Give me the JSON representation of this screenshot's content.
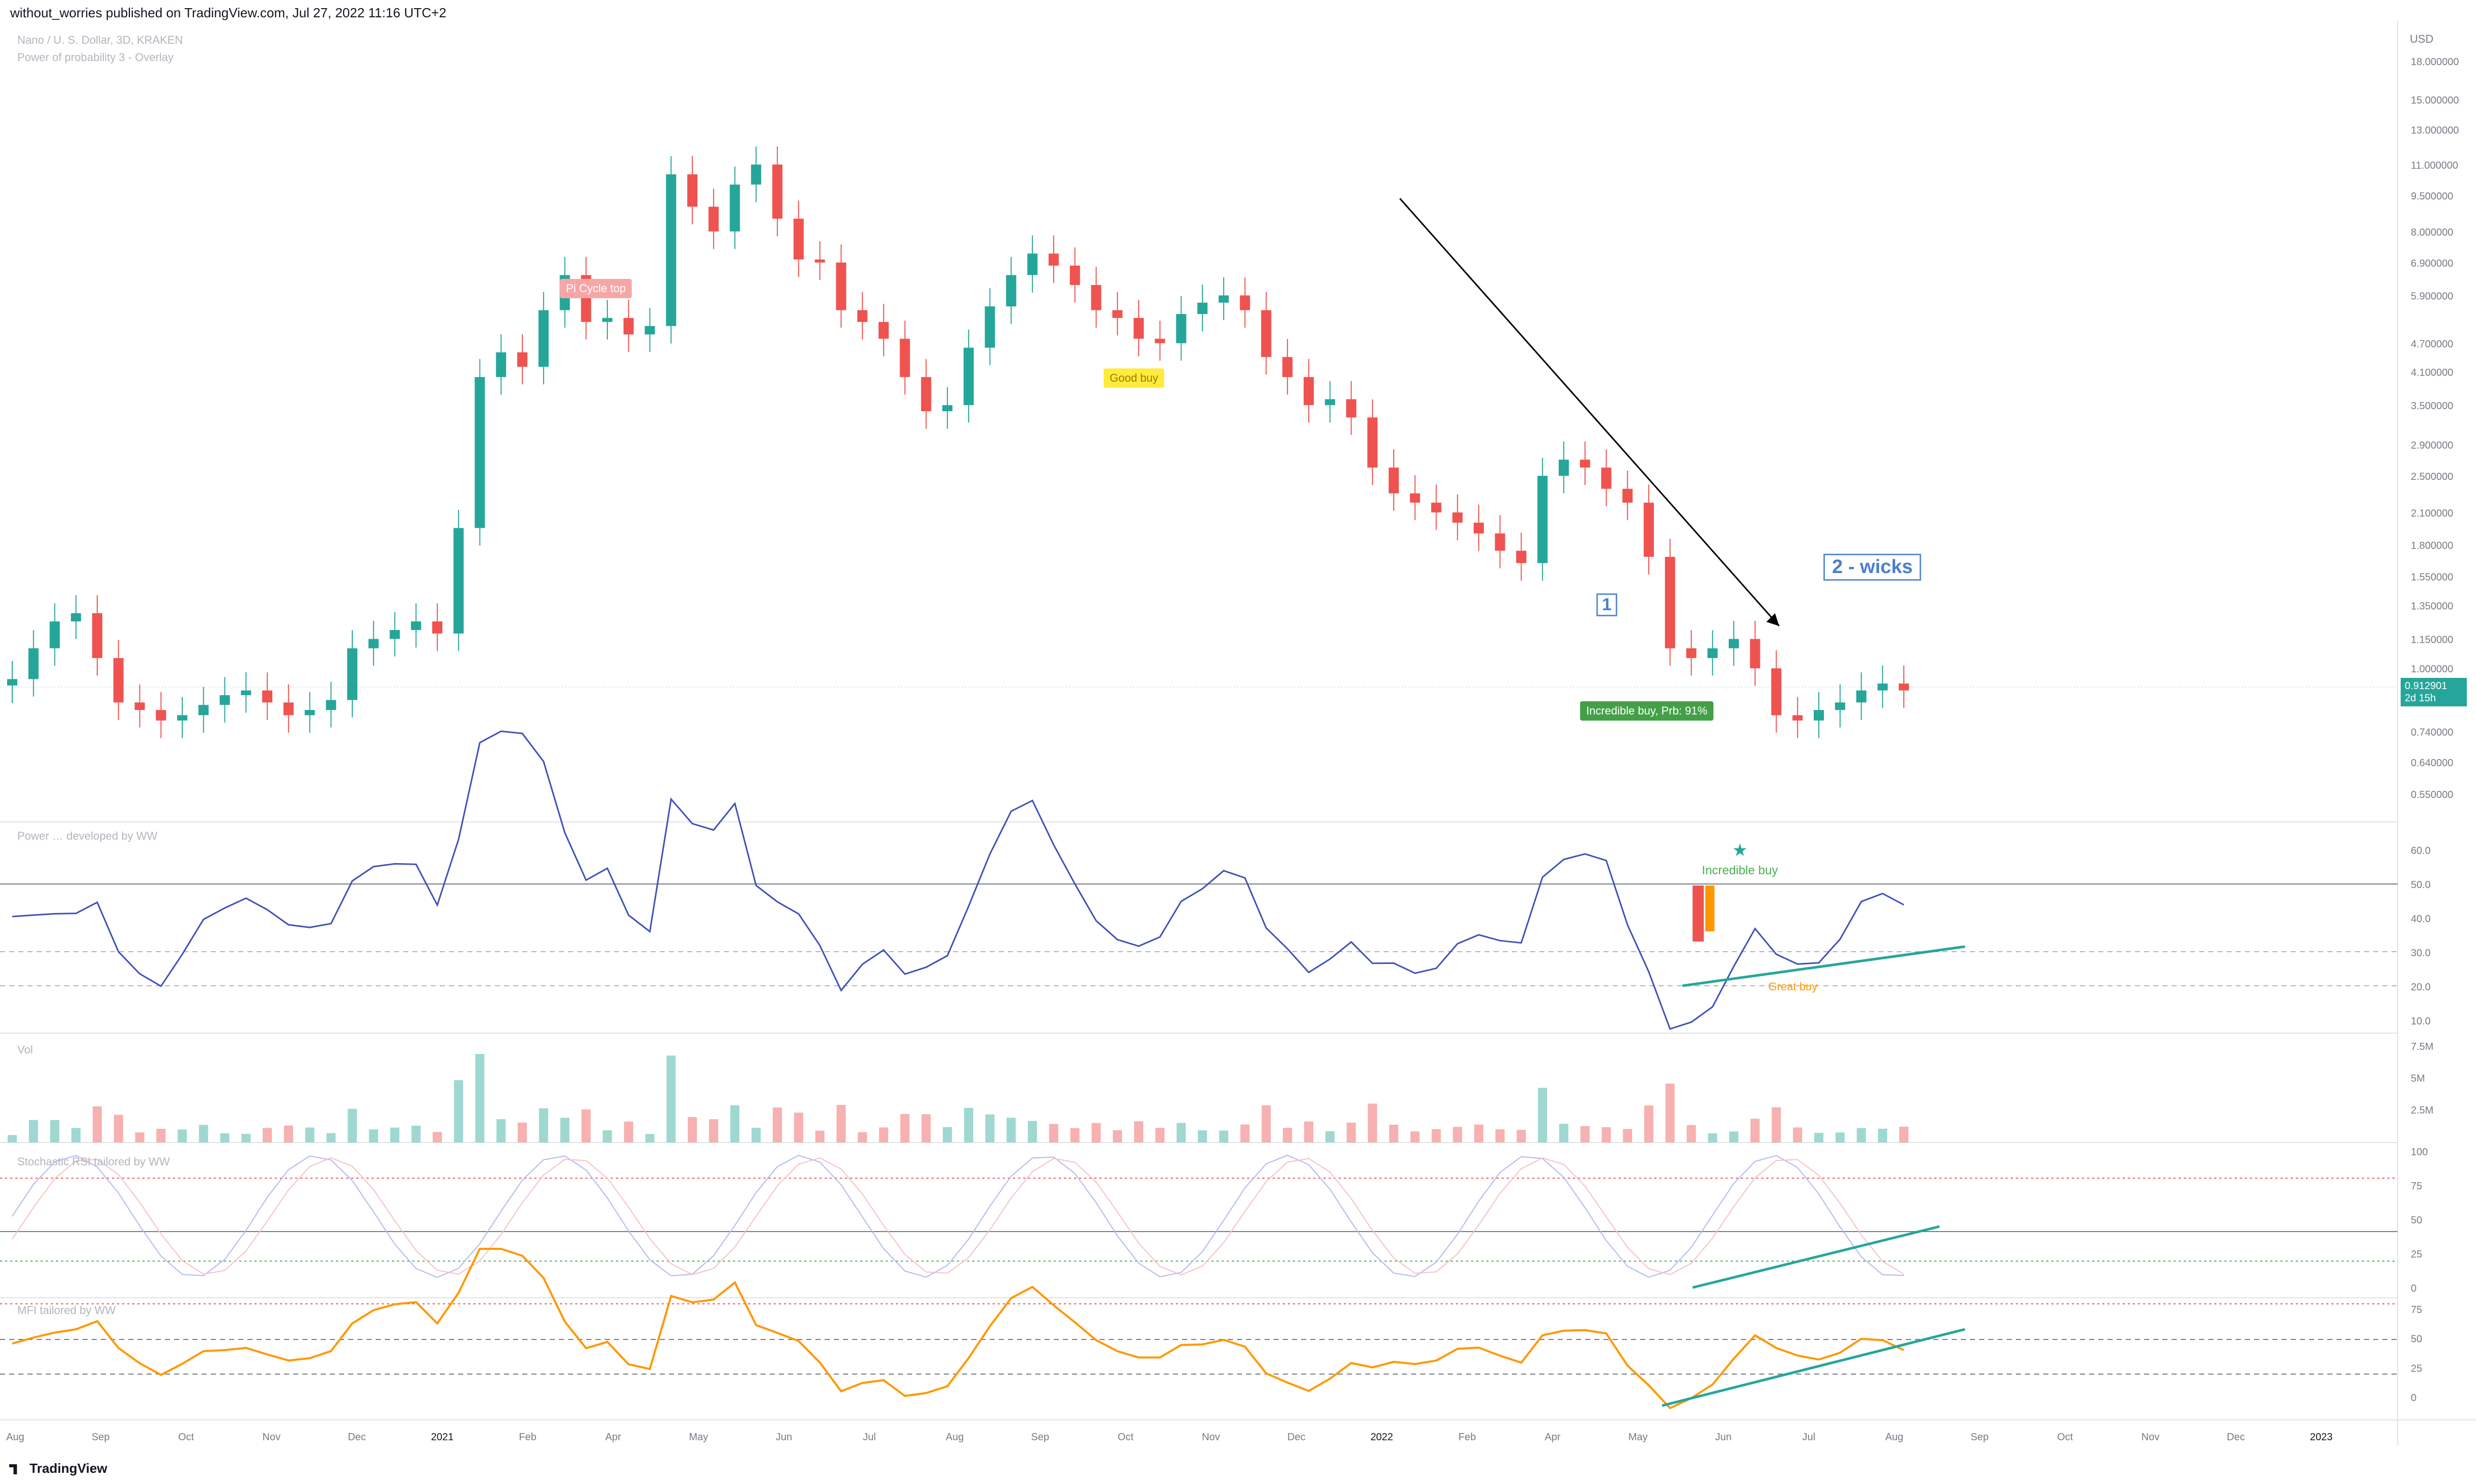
{
  "header": {
    "publisher": "without_worries published on TradingView.com, Jul 27, 2022 11:16 UTC+2"
  },
  "legend": {
    "symbol": "Nano / U. S. Dollar, 3D, KRAKEN",
    "indicator": "Power of probability 3 - Overlay"
  },
  "pane_titles": {
    "power": "Power … developed by WW",
    "vol": "Vol",
    "stoch": "Stochastic RSI tailored by WW",
    "mfi": "MFI tailored by WW"
  },
  "price_tag": {
    "price": "0.912901",
    "countdown": "2d 15h"
  },
  "annotations": {
    "pi_cycle": "Pi Cycle top",
    "good_buy": "Good buy",
    "incredible_buy": "Incredible buy, Prb: 91%",
    "label_1": "1",
    "two_wicks": "2 - wicks",
    "incredible_buy_small": "Incredible buy",
    "great_buy": "Great buy"
  },
  "brand": "TradingView",
  "colors": {
    "up": "#26a69a",
    "down": "#ef5350",
    "power_line": "#3f51b5",
    "mfi_line": "#ff9800",
    "teal_trend": "#26a69a"
  },
  "chart_data": {
    "type": "candlestick",
    "title": "Nano / U. S. Dollar, 3D, KRAKEN",
    "y_axis_label": "USD",
    "y_scale": "log",
    "x_tick_labels": [
      "Aug",
      "Sep",
      "Oct",
      "Nov",
      "Dec",
      "2021",
      "Feb",
      "Apr",
      "May",
      "Jun",
      "Jul",
      "Aug",
      "Sep",
      "Oct",
      "Nov",
      "Dec",
      "2022",
      "Feb",
      "Apr",
      "May",
      "Jun",
      "Jul",
      "Aug",
      "Sep",
      "Oct",
      "Nov",
      "Dec",
      "2023"
    ],
    "price_ticks": [
      "18.000000",
      "15.000000",
      "13.000000",
      "11.000000",
      "9.500000",
      "8.000000",
      "6.900000",
      "5.900000",
      "4.700000",
      "4.100000",
      "3.500000",
      "2.900000",
      "2.500000",
      "2.100000",
      "1.800000",
      "1.550000",
      "1.350000",
      "1.150000",
      "1.000000",
      "0.740000",
      "0.640000",
      "0.550000"
    ],
    "close_series": [
      0.95,
      1.1,
      1.25,
      1.3,
      1.05,
      0.85,
      0.82,
      0.78,
      0.8,
      0.84,
      0.88,
      0.9,
      0.85,
      0.8,
      0.82,
      0.86,
      1.1,
      1.15,
      1.2,
      1.25,
      1.18,
      1.95,
      4.0,
      4.5,
      4.2,
      5.5,
      6.5,
      5.2,
      5.3,
      4.9,
      5.1,
      10.5,
      9.0,
      8.0,
      10.0,
      11.0,
      8.5,
      7.0,
      6.9,
      5.5,
      5.2,
      4.8,
      4.0,
      3.4,
      3.5,
      4.6,
      5.6,
      6.5,
      7.2,
      6.8,
      6.2,
      5.5,
      5.3,
      4.8,
      4.7,
      5.4,
      5.7,
      5.9,
      5.5,
      4.4,
      4.0,
      3.5,
      3.6,
      3.3,
      2.6,
      2.3,
      2.2,
      2.1,
      2.0,
      1.9,
      1.75,
      1.65,
      2.5,
      2.7,
      2.6,
      2.35,
      2.2,
      1.7,
      1.1,
      1.05,
      1.1,
      1.15,
      1.0,
      0.8,
      0.78,
      0.82,
      0.85,
      0.9,
      0.93,
      0.9
    ],
    "power_ticks": [
      "60.0",
      "50.0",
      "40.0",
      "30.0",
      "20.0",
      "10.0"
    ],
    "volume_ticks": [
      "7.5M",
      "5M",
      "2.5M"
    ],
    "stoch_ticks": [
      "100",
      "75",
      "50",
      "25",
      "0"
    ],
    "mfi_ticks": [
      "75",
      "50",
      "25",
      "0"
    ]
  }
}
